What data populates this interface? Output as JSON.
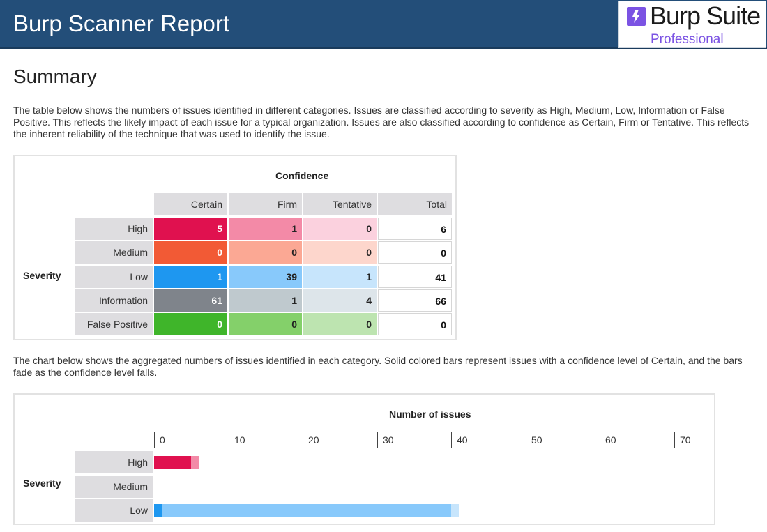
{
  "header": {
    "title": "Burp Scanner Report",
    "logo_name": "Burp Suite",
    "logo_edition": "Professional",
    "bg_color": "#234e79"
  },
  "summary": {
    "title": "Summary",
    "intro": "The table below shows the numbers of issues identified in different categories. Issues are classified according to severity as High, Medium, Low, Information or False Positive. This reflects the likely impact of each issue for a typical organization. Issues are also classified according to confidence as Certain, Firm or Tentative. This reflects the inherent reliability of the technique that was used to identify the issue.",
    "chart_intro": "The chart below shows the aggregated numbers of issues identified in each category. Solid colored bars represent issues with a confidence level of Certain, and the bars fade as the confidence level falls."
  },
  "table": {
    "confidence_label": "Confidence",
    "severity_label": "Severity",
    "columns": [
      "Certain",
      "Firm",
      "Tentative",
      "Total"
    ],
    "rows": [
      {
        "label": "High",
        "values": [
          "5",
          "1",
          "0"
        ],
        "total": "6",
        "colors": [
          "#e0114f",
          "#f38aa7",
          "#fbd1de"
        ],
        "text_colors": [
          "#ffffff",
          "#222222",
          "#222222"
        ]
      },
      {
        "label": "Medium",
        "values": [
          "0",
          "0",
          "0"
        ],
        "total": "0",
        "colors": [
          "#f25a35",
          "#fba894",
          "#fdd6cc"
        ],
        "text_colors": [
          "#ffffff",
          "#222222",
          "#222222"
        ]
      },
      {
        "label": "Low",
        "values": [
          "1",
          "39",
          "1"
        ],
        "total": "41",
        "colors": [
          "#1e97f0",
          "#88c9fb",
          "#c7e5fc"
        ],
        "text_colors": [
          "#ffffff",
          "#222222",
          "#222222"
        ]
      },
      {
        "label": "Information",
        "values": [
          "61",
          "1",
          "4"
        ],
        "total": "66",
        "colors": [
          "#7f848b",
          "#bfc9ce",
          "#dde5ea"
        ],
        "text_colors": [
          "#ffffff",
          "#222222",
          "#222222"
        ]
      },
      {
        "label": "False Positive",
        "values": [
          "0",
          "0",
          "0"
        ],
        "total": "0",
        "colors": [
          "#3fb52a",
          "#84d06a",
          "#bde4b0"
        ],
        "text_colors": [
          "#ffffff",
          "#222222",
          "#222222"
        ]
      }
    ]
  },
  "chart_data": {
    "type": "bar",
    "orientation": "horizontal",
    "stacked": true,
    "title": "Number of issues",
    "ylabel": "Severity",
    "categories": [
      "High",
      "Medium",
      "Low"
    ],
    "xticks": [
      "0",
      "10",
      "20",
      "30",
      "40",
      "50",
      "60",
      "70"
    ],
    "xlim": [
      0,
      70
    ],
    "series": [
      {
        "values": [
          5,
          0,
          1
        ],
        "colors": [
          "#e0114f",
          "#f25a35",
          "#1e97f0"
        ]
      },
      {
        "values": [
          1,
          0,
          39
        ],
        "colors": [
          "#f38aa7",
          "#fba894",
          "#88c9fb"
        ]
      },
      {
        "values": [
          0,
          0,
          1
        ],
        "colors": [
          "#fbd1de",
          "#fdd6cc",
          "#c7e5fc"
        ]
      }
    ]
  }
}
